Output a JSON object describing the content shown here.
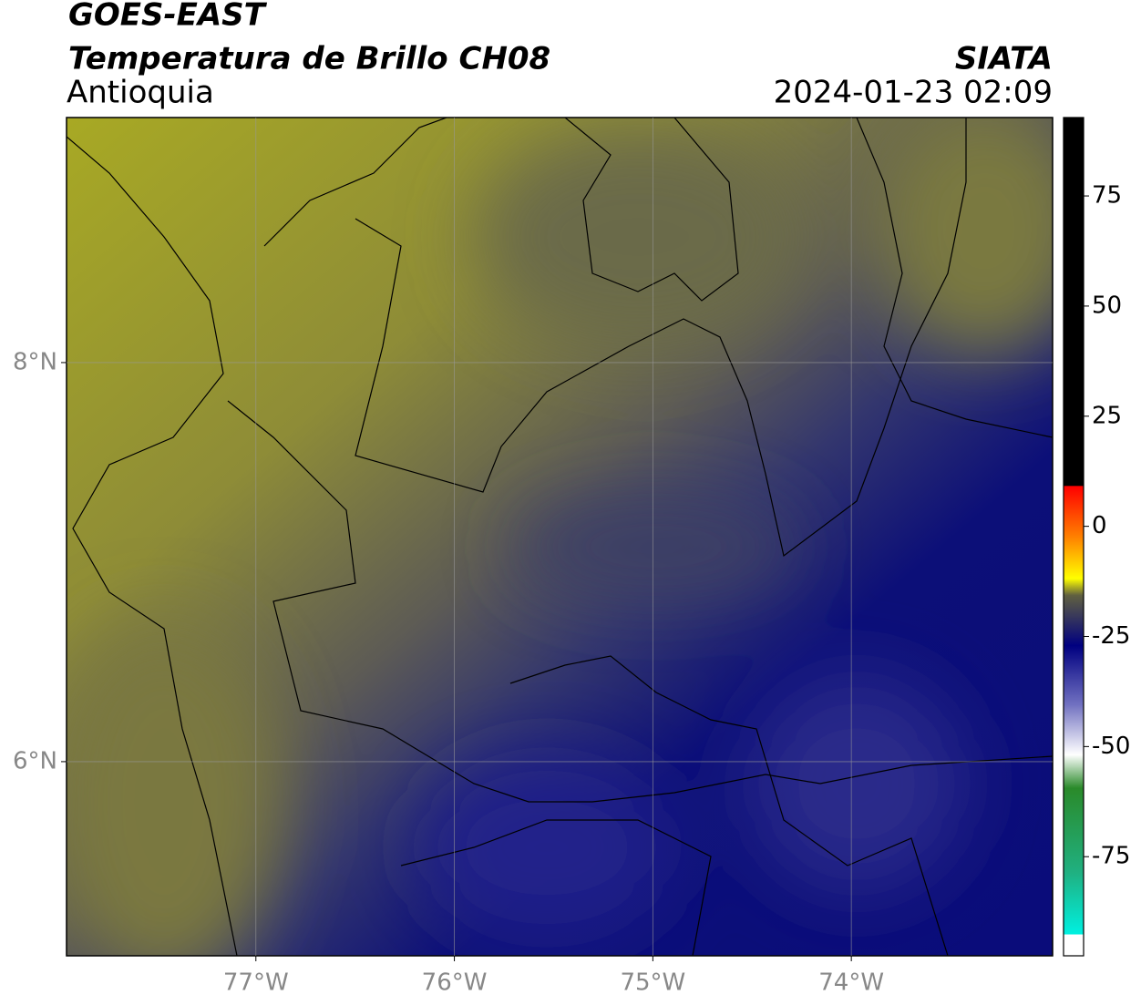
{
  "header": {
    "title": "GOES-EAST",
    "subtitle": "Temperatura de Brillo CH08",
    "region": "Antioquia",
    "source": "SIATA",
    "datetime": "2024-01-23 02:09"
  },
  "map": {
    "xlim": [
      -77.954,
      -72.986
    ],
    "ylim": [
      5.027,
      9.228
    ],
    "xticks": [
      {
        "value": -77,
        "label": "77°W"
      },
      {
        "value": -76,
        "label": "76°W"
      },
      {
        "value": -75,
        "label": "75°W"
      },
      {
        "value": -74,
        "label": "74°W"
      }
    ],
    "yticks": [
      {
        "value": 6,
        "label": "6°N"
      },
      {
        "value": 8,
        "label": "8°N"
      }
    ],
    "grid": true
  },
  "colorbar": {
    "lim": [
      -97.5,
      92.8
    ],
    "ticks": [
      -75,
      -50,
      -25,
      0,
      25,
      50,
      75
    ]
  }
}
